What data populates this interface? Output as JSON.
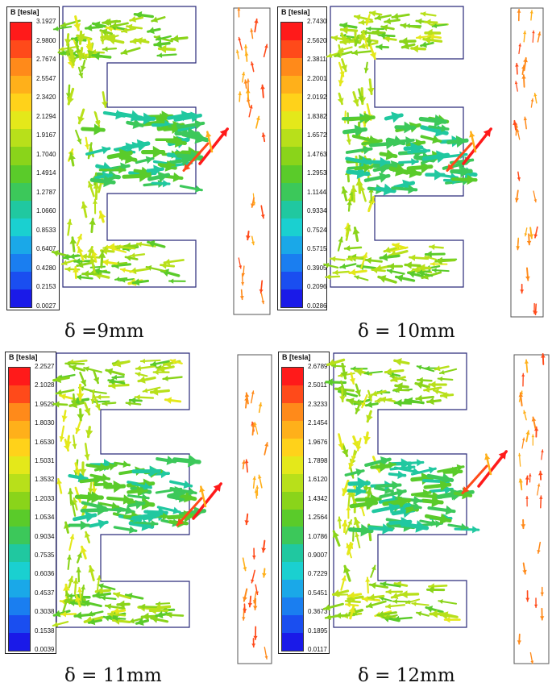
{
  "panels": [
    {
      "id": "d9",
      "caption": "δ =9mm",
      "legend_title": "B [tesla]",
      "ticks": [
        "3.1927",
        "2.9800",
        "2.7674",
        "2.5547",
        "2.3420",
        "2.1294",
        "1.9167",
        "1.7040",
        "1.4914",
        "1.2787",
        "1.0660",
        "0.8533",
        "0.6407",
        "0.4280",
        "0.2153",
        "0.0027"
      ]
    },
    {
      "id": "d10",
      "caption": "δ = 10mm",
      "legend_title": "B [tesla]",
      "ticks": [
        "2.7430",
        "2.5620",
        "2.3811",
        "2.2001",
        "2.0192",
        "1.8382",
        "1.6572",
        "1.4763",
        "1.2953",
        "1.1144",
        "0.9334",
        "0.7524",
        "0.5715",
        "0.3905",
        "0.2096",
        "0.0286"
      ]
    },
    {
      "id": "d11",
      "caption": "δ = 11mm",
      "legend_title": "B [tesla]",
      "ticks": [
        "2.2527",
        "2.1028",
        "1.9529",
        "1.8030",
        "1.6530",
        "1.5031",
        "1.3532",
        "1.2033",
        "1.0534",
        "0.9034",
        "0.7535",
        "0.6036",
        "0.4537",
        "0.3038",
        "0.1538",
        "0.0039"
      ]
    },
    {
      "id": "d12",
      "caption": "δ = 12mm",
      "legend_title": "B [tesla]",
      "ticks": [
        "2.6789",
        "2.5011",
        "2.3233",
        "2.1454",
        "1.9676",
        "1.7898",
        "1.6120",
        "1.4342",
        "1.2564",
        "1.0786",
        "0.9007",
        "0.7229",
        "0.5451",
        "0.3673",
        "0.1895",
        "0.0117"
      ]
    }
  ],
  "colors": {
    "scale": [
      "#ff1a1a",
      "#ff4a1a",
      "#ff8a1a",
      "#ffb01a",
      "#ffd21a",
      "#e4e81a",
      "#b8e01a",
      "#8ad41a",
      "#5acb2a",
      "#3cc85a",
      "#20c8a0",
      "#1ad0d0",
      "#1aa8e8",
      "#1a7ef0",
      "#1a4ef0",
      "#1a1ae8"
    ],
    "outline": "#2a2a7a"
  }
}
